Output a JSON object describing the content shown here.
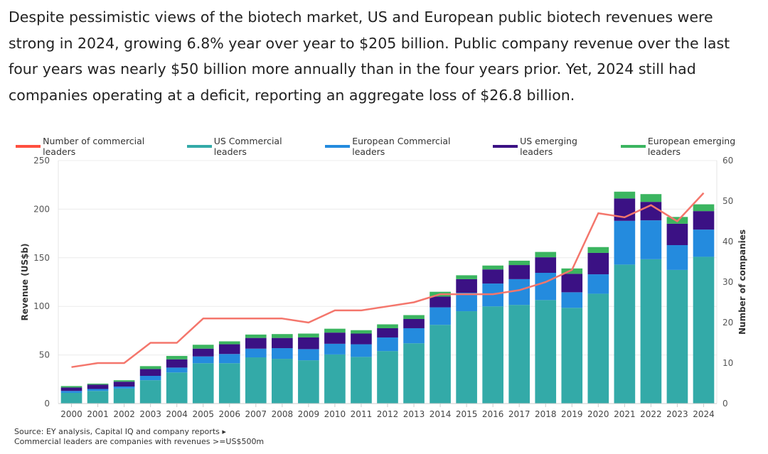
{
  "intro": "Despite pessimistic views of the biotech market, US and European public biotech revenues were strong in 2024, growing 6.8% year over year to $205 billion. Public company revenue over the last four years was nearly $50 billion more annually than in the four years prior. Yet, 2024 still had companies operating at a deficit, reporting an aggregate loss of $26.8 billion.",
  "notes": {
    "source": "Source: EY analysis, Capital IQ and company reports ▸",
    "footnote": "Commercial leaders are companies with revenues >=US$500m"
  },
  "chart_data": {
    "type": "bar",
    "stacked": true,
    "categories": [
      "2000",
      "2001",
      "2002",
      "2003",
      "2004",
      "2005",
      "2006",
      "2007",
      "2008",
      "2009",
      "2010",
      "2011",
      "2012",
      "2013",
      "2014",
      "2015",
      "2016",
      "2017",
      "2018",
      "2019",
      "2020",
      "2021",
      "2022",
      "2023",
      "2024"
    ],
    "ylabel": "Revenue (US$b)",
    "ylim": [
      0,
      250
    ],
    "yticks": [
      0,
      50,
      100,
      150,
      200,
      250
    ],
    "y2label": "Number of companies",
    "y2lim": [
      0,
      60
    ],
    "y2ticks": [
      0,
      10,
      20,
      30,
      40,
      50,
      60
    ],
    "grid": true,
    "legend_placement": "top-left",
    "series": [
      {
        "name": "US Commercial leaders",
        "color": "#33aaa8",
        "values": [
          11,
          13,
          15.5,
          24,
          32,
          41.5,
          41.5,
          47.5,
          46,
          44.5,
          50.5,
          48,
          54,
          62,
          81,
          95,
          100,
          101.5,
          106.5,
          98.5,
          113,
          143,
          148.5,
          137.5,
          151
        ]
      },
      {
        "name": "European Commercial leaders",
        "color": "#248bde",
        "values": [
          2,
          2,
          2,
          4.5,
          5,
          7,
          9.5,
          9,
          11,
          11.5,
          11,
          13,
          14,
          15.5,
          18,
          19,
          23.5,
          26.5,
          28,
          16,
          20,
          45,
          40,
          25.5,
          28
        ]
      },
      {
        "name": "US emerging leaders",
        "color": "#3b1184",
        "values": [
          3.5,
          4.5,
          5,
          7,
          8.5,
          8,
          10,
          11,
          10.5,
          12,
          11.5,
          11,
          9.5,
          9.5,
          11,
          14,
          14.5,
          14.5,
          16,
          19,
          22,
          23,
          19,
          22,
          19
        ]
      },
      {
        "name": "European emerging leaders",
        "color": "#3bb560",
        "values": [
          1.5,
          1,
          1.5,
          3,
          3.5,
          4,
          3,
          3.5,
          4,
          4,
          4,
          3.5,
          4,
          4,
          5,
          4,
          4,
          4.5,
          5.5,
          5.5,
          6,
          7,
          8,
          7,
          7
        ]
      }
    ],
    "line": {
      "name": "Number of commercial leaders",
      "color": "#f4766c",
      "legend_color": "#ff4f3f",
      "axis": "right",
      "values": [
        9,
        10,
        10,
        15,
        15,
        21,
        21,
        21,
        21,
        20,
        23,
        23,
        24,
        25,
        27,
        27,
        27,
        28,
        30,
        33,
        47,
        46,
        49,
        45,
        52
      ]
    }
  }
}
